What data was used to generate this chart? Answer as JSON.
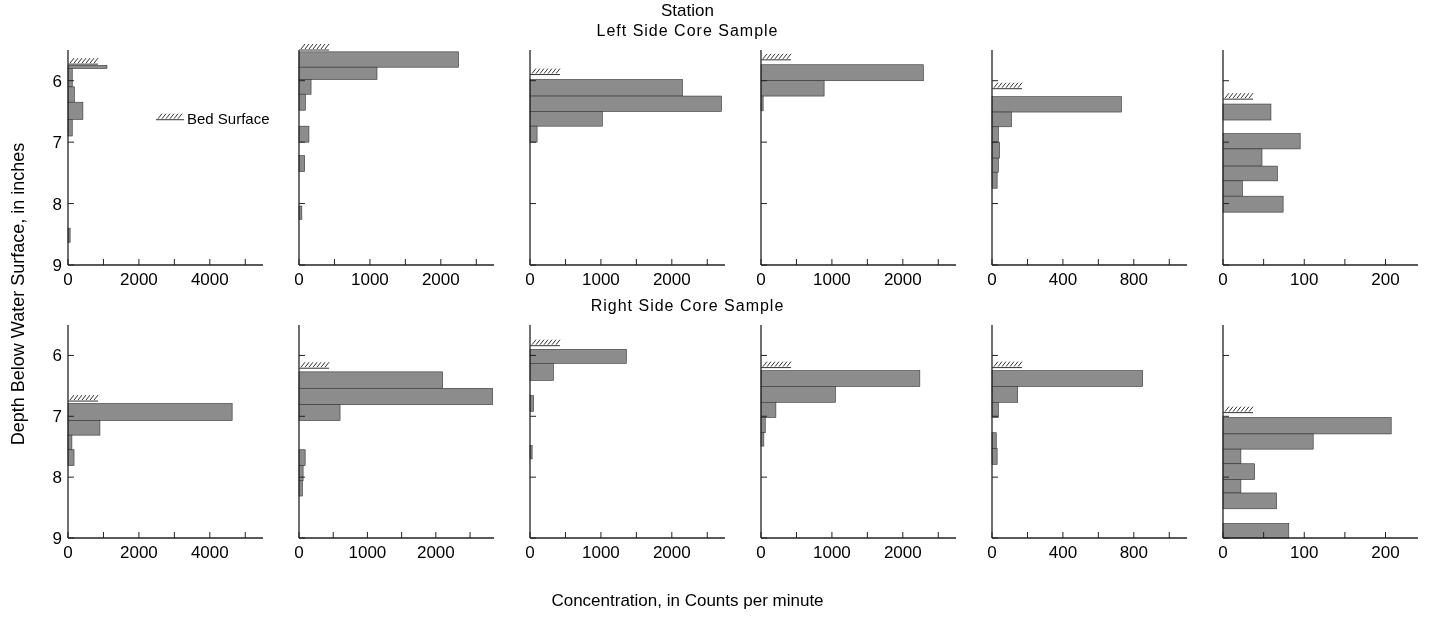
{
  "chart_data": [
    {
      "type": "histogram",
      "orientation": "horizontal",
      "ylabel": "Depth Below Water Surface, in inches",
      "annotations": [
        "Bed Surface"
      ],
      "color": "#8c8c8c",
      "bins": [
        5.75,
        5.8,
        6.1,
        6.35,
        6.63,
        6.9,
        8.4,
        8.63
      ],
      "values": [
        1100,
        120,
        180,
        420,
        120,
        0,
        60
      ],
      "xlim": [
        0,
        5500
      ],
      "xticks": [
        0,
        {
          "value": 1000,
          "label": null
        },
        2000,
        {
          "value": 3000,
          "label": null
        },
        4000,
        {
          "value": 5000,
          "label": null
        }
      ],
      "ylim": [
        9,
        5.5
      ],
      "yticks": [
        6,
        7,
        8,
        9
      ],
      "ref_lines": [
        {
          "axis": "y",
          "value": 5.73
        }
      ]
    },
    {
      "type": "histogram",
      "orientation": "horizontal",
      "color": "#8c8c8c",
      "bins": [
        5.53,
        5.78,
        5.98,
        6.22,
        6.48,
        6.74,
        7.0,
        7.22,
        7.48,
        8.04,
        8.26
      ],
      "values": [
        2250,
        1100,
        170,
        90,
        0,
        140,
        0,
        80,
        0,
        40
      ],
      "xlim": [
        0,
        2750
      ],
      "xticks": [
        0,
        {
          "value": 500,
          "label": null
        },
        1000,
        {
          "value": 1500,
          "label": null
        },
        2000,
        {
          "value": 2500,
          "label": null
        }
      ],
      "ylim": [
        9,
        5.5
      ],
      "yticks": [
        {
          "value": 6,
          "label": null
        },
        {
          "value": 7,
          "label": null
        },
        {
          "value": 8,
          "label": null
        },
        {
          "value": 9,
          "label": null
        }
      ],
      "tick_labels": "x",
      "ref_lines": [
        {
          "axis": "y",
          "value": 5.5
        }
      ]
    },
    {
      "type": "histogram",
      "orientation": "horizontal",
      "title": "Station",
      "subtitle": "Left Side Core Sample",
      "color": "#8c8c8c",
      "bins": [
        5.98,
        6.25,
        6.5,
        6.74,
        7.0
      ],
      "values": [
        2150,
        2700,
        1020,
        100
      ],
      "xlim": [
        0,
        2750
      ],
      "xticks": [
        0,
        {
          "value": 500,
          "label": null
        },
        1000,
        {
          "value": 1500,
          "label": null
        },
        2000,
        {
          "value": 2500,
          "label": null
        }
      ],
      "ylim": [
        9,
        5.5
      ],
      "yticks": [
        {
          "value": 6,
          "label": null
        },
        {
          "value": 7,
          "label": null
        },
        {
          "value": 8,
          "label": null
        },
        {
          "value": 9,
          "label": null
        }
      ],
      "tick_labels": "x",
      "ref_lines": [
        {
          "axis": "y",
          "value": 5.9
        }
      ]
    },
    {
      "type": "histogram",
      "orientation": "horizontal",
      "color": "#8c8c8c",
      "bins": [
        5.74,
        6.0,
        6.25,
        6.49
      ],
      "values": [
        2290,
        890,
        30
      ],
      "xlim": [
        0,
        2750
      ],
      "xticks": [
        0,
        {
          "value": 500,
          "label": null
        },
        1000,
        {
          "value": 1500,
          "label": null
        },
        2000,
        {
          "value": 2500,
          "label": null
        }
      ],
      "ylim": [
        9,
        5.5
      ],
      "yticks": [
        {
          "value": 6,
          "label": null
        },
        {
          "value": 7,
          "label": null
        },
        {
          "value": 8,
          "label": null
        },
        {
          "value": 9,
          "label": null
        }
      ],
      "tick_labels": "x",
      "ref_lines": [
        {
          "axis": "y",
          "value": 5.66
        }
      ]
    },
    {
      "type": "histogram",
      "orientation": "horizontal",
      "color": "#8c8c8c",
      "bins": [
        6.26,
        6.51,
        6.75,
        7.0,
        7.26,
        7.49,
        7.75
      ],
      "values": [
        730,
        110,
        36,
        43,
        36,
        29
      ],
      "xlim": [
        0,
        1100
      ],
      "xticks": [
        0,
        {
          "value": 200,
          "label": null
        },
        400,
        {
          "value": 600,
          "label": null
        },
        800,
        {
          "value": 1000,
          "label": null
        }
      ],
      "ylim": [
        9,
        5.5
      ],
      "yticks": [
        {
          "value": 6,
          "label": null
        },
        {
          "value": 7,
          "label": null
        },
        {
          "value": 8,
          "label": null
        },
        {
          "value": 9,
          "label": null
        }
      ],
      "tick_labels": "x",
      "ref_lines": [
        {
          "axis": "y",
          "value": 6.13
        }
      ]
    },
    {
      "type": "histogram",
      "orientation": "horizontal",
      "color": "#8c8c8c",
      "bins": [
        6.38,
        6.64,
        6.86,
        7.11,
        7.39,
        7.63,
        7.88,
        8.14
      ],
      "values": [
        59,
        0,
        95,
        48,
        67,
        24,
        74
      ],
      "xlim": [
        0,
        240
      ],
      "xticks": [
        0,
        {
          "value": 50,
          "label": null
        },
        100,
        {
          "value": 150,
          "label": null
        },
        200
      ],
      "ylim": [
        9,
        5.5
      ],
      "yticks": [
        {
          "value": 6,
          "label": null
        },
        {
          "value": 7,
          "label": null
        },
        {
          "value": 8,
          "label": null
        },
        {
          "value": 9,
          "label": null
        }
      ],
      "tick_labels": "x",
      "ref_lines": [
        {
          "axis": "y",
          "value": 6.3
        }
      ]
    },
    {
      "type": "histogram",
      "orientation": "horizontal",
      "color": "#8c8c8c",
      "bins": [
        6.79,
        7.07,
        7.31,
        7.55,
        7.81
      ],
      "values": [
        4630,
        900,
        110,
        170
      ],
      "xlim": [
        0,
        5500
      ],
      "xticks": [
        0,
        {
          "value": 1000,
          "label": null
        },
        2000,
        {
          "value": 3000,
          "label": null
        },
        4000,
        {
          "value": 5000,
          "label": null
        }
      ],
      "ylim": [
        9,
        5.5
      ],
      "yticks": [
        6,
        7,
        8,
        9
      ],
      "ref_lines": [
        {
          "axis": "y",
          "value": 6.75
        }
      ]
    },
    {
      "type": "histogram",
      "orientation": "horizontal",
      "color": "#8c8c8c",
      "bins": [
        6.27,
        6.54,
        6.81,
        7.07,
        7.55,
        7.81,
        8.06,
        8.31
      ],
      "values": [
        2100,
        2830,
        600,
        0,
        90,
        60,
        50
      ],
      "xlim": [
        0,
        2850
      ],
      "xticks": [
        0,
        {
          "value": 500,
          "label": null
        },
        1000,
        {
          "value": 1500,
          "label": null
        },
        2000,
        {
          "value": 2500,
          "label": null
        }
      ],
      "ylim": [
        9,
        5.5
      ],
      "yticks": [
        {
          "value": 6,
          "label": null
        },
        {
          "value": 7,
          "label": null
        },
        {
          "value": 8,
          "label": null
        },
        {
          "value": 9,
          "label": null
        }
      ],
      "tick_labels": "x",
      "ref_lines": [
        {
          "axis": "y",
          "value": 6.21
        }
      ]
    },
    {
      "type": "histogram",
      "orientation": "horizontal",
      "subtitle": "Right Side Core Sample",
      "xlabel": "Concentration, in Counts per minute",
      "color": "#8c8c8c",
      "bins": [
        5.9,
        6.13,
        6.41,
        6.66,
        6.92,
        7.48,
        7.7
      ],
      "values": [
        1360,
        330,
        0,
        50,
        0,
        30
      ],
      "xlim": [
        0,
        2750
      ],
      "xticks": [
        0,
        {
          "value": 500,
          "label": null
        },
        1000,
        {
          "value": 1500,
          "label": null
        },
        2000,
        {
          "value": 2500,
          "label": null
        }
      ],
      "ylim": [
        9,
        5.5
      ],
      "yticks": [
        {
          "value": 6,
          "label": null
        },
        {
          "value": 7,
          "label": null
        },
        {
          "value": 8,
          "label": null
        },
        {
          "value": 9,
          "label": null
        }
      ],
      "tick_labels": "x",
      "ref_lines": [
        {
          "axis": "y",
          "value": 5.84
        }
      ]
    },
    {
      "type": "histogram",
      "orientation": "horizontal",
      "color": "#8c8c8c",
      "bins": [
        6.25,
        6.51,
        6.77,
        7.02,
        7.27,
        7.49
      ],
      "values": [
        2240,
        1050,
        210,
        60,
        40
      ],
      "xlim": [
        0,
        2750
      ],
      "xticks": [
        0,
        {
          "value": 500,
          "label": null
        },
        1000,
        {
          "value": 1500,
          "label": null
        },
        2000,
        {
          "value": 2500,
          "label": null
        }
      ],
      "ylim": [
        9,
        5.5
      ],
      "yticks": [
        {
          "value": 6,
          "label": null
        },
        {
          "value": 7,
          "label": null
        },
        {
          "value": 8,
          "label": null
        },
        {
          "value": 9,
          "label": null
        }
      ],
      "tick_labels": "x",
      "ref_lines": [
        {
          "axis": "y",
          "value": 6.2
        }
      ]
    },
    {
      "type": "histogram",
      "orientation": "horizontal",
      "color": "#8c8c8c",
      "bins": [
        6.25,
        6.51,
        6.77,
        7.02,
        7.27,
        7.53,
        7.79
      ],
      "values": [
        850,
        145,
        36,
        0,
        24,
        29
      ],
      "xlim": [
        0,
        1100
      ],
      "xticks": [
        0,
        {
          "value": 200,
          "label": null
        },
        400,
        {
          "value": 600,
          "label": null
        },
        800,
        {
          "value": 1000,
          "label": null
        }
      ],
      "ylim": [
        9,
        5.5
      ],
      "yticks": [
        {
          "value": 6,
          "label": null
        },
        {
          "value": 7,
          "label": null
        },
        {
          "value": 8,
          "label": null
        },
        {
          "value": 9,
          "label": null
        }
      ],
      "tick_labels": "x",
      "ref_lines": [
        {
          "axis": "y",
          "value": 6.2
        }
      ]
    },
    {
      "type": "histogram",
      "orientation": "horizontal",
      "color": "#8c8c8c",
      "bins": [
        7.02,
        7.29,
        7.54,
        7.78,
        8.04,
        8.26,
        8.52,
        8.76,
        9.0
      ],
      "values": [
        207,
        111,
        22,
        39,
        22,
        66,
        0,
        81
      ],
      "xlim": [
        0,
        240
      ],
      "xticks": [
        0,
        {
          "value": 50,
          "label": null
        },
        100,
        {
          "value": 150,
          "label": null
        },
        200
      ],
      "ylim": [
        9,
        5.5
      ],
      "yticks": [
        {
          "value": 6,
          "label": null
        },
        {
          "value": 7,
          "label": null
        },
        {
          "value": 8,
          "label": null
        },
        {
          "value": 9,
          "label": null
        }
      ],
      "tick_labels": "x",
      "ref_lines": [
        {
          "axis": "y",
          "value": 6.94
        }
      ]
    }
  ]
}
